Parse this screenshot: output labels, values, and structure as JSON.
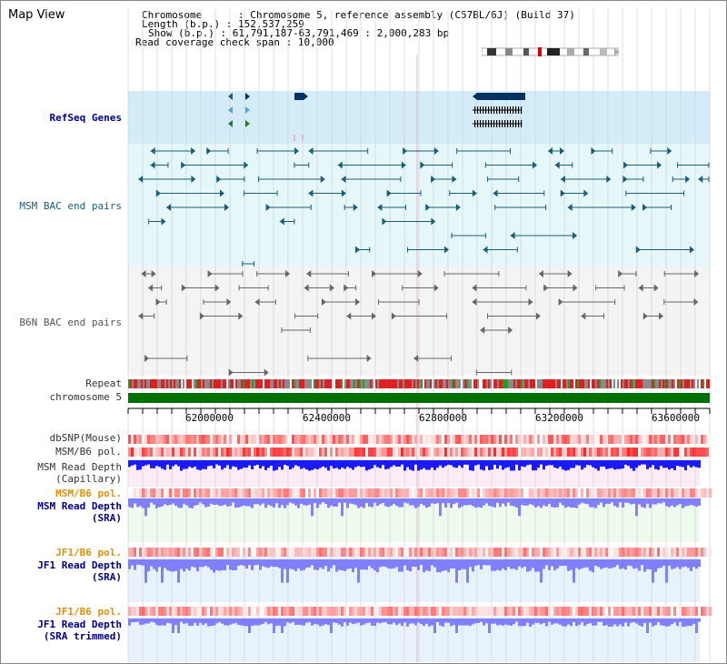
{
  "title": "Map View",
  "info": {
    "chromosome_label": "Chromosome",
    "chromosome_value": "Chromosome 5, reference assembly (C57BL/6J) (Build 37)",
    "length_label": "Length (b.p.)",
    "length_value": "152,537,259",
    "show_label": "Show (b.p.)",
    "show_value": "61,791,187-63,791,469 : 2,000,283 bp",
    "coverage_label": "Read coverage check span",
    "coverage_value": "10,000"
  },
  "tracks": {
    "refseq": "RefSeq Genes",
    "msm_bac": "MSM BAC end pairs",
    "b6n_bac": "B6N BAC end pairs",
    "repeat": "Repeat",
    "chromosome": "chromosome 5",
    "dbsnp": "dbSNP(Mouse)",
    "msm_b6_pol": "MSM/B6 pol.",
    "msm_depth_cap_1": "MSM Read Depth",
    "msm_depth_cap_2": "(Capillary)",
    "msm_b6_pol2": "MSM/B6 pol.",
    "msm_depth_sra_1": "MSM Read Depth",
    "msm_depth_sra_2": "(SRA)",
    "jf1_b6_pol": "JF1/B6 pol.",
    "jf1_depth_sra_1": "JF1 Read Depth",
    "jf1_depth_sra_2": "(SRA)",
    "jf1_b6_pol2": "JF1/B6 pol.",
    "jf1_depth_trim_1": "JF1 Read Depth",
    "jf1_depth_trim_2": "(SRA trimmed)"
  },
  "ruler_ticks": [
    "62000000",
    "62400000",
    "62800000",
    "63200000",
    "63600000"
  ],
  "colors": {
    "refseq_bg": "#d4ecf7",
    "msm_bac_bg": "#e6f7f9",
    "b6n_bg": "#f4f4f4",
    "depth_bg_pink": "#fcecf6",
    "depth_bg_green": "#eefaee",
    "chromosome_bar": "#007000",
    "depth_blue": "#1a1aff",
    "depth_light": "#8080ff",
    "feature_teal": "#1a5c7a",
    "feature_gray": "#666666",
    "grid": "#cfcfdf"
  }
}
